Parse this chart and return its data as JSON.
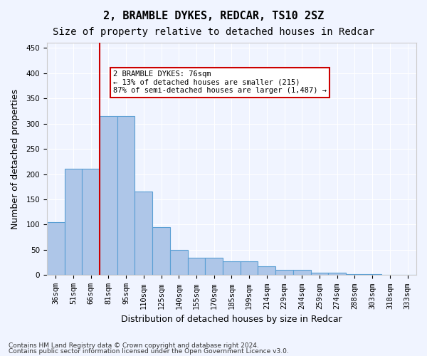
{
  "title1": "2, BRAMBLE DYKES, REDCAR, TS10 2SZ",
  "title2": "Size of property relative to detached houses in Redcar",
  "xlabel": "Distribution of detached houses by size in Redcar",
  "ylabel": "Number of detached properties",
  "categories": [
    "36sqm",
    "51sqm",
    "66sqm",
    "81sqm",
    "95sqm",
    "110sqm",
    "125sqm",
    "140sqm",
    "155sqm",
    "170sqm",
    "185sqm",
    "199sqm",
    "214sqm",
    "229sqm",
    "244sqm",
    "259sqm",
    "274sqm",
    "288sqm",
    "303sqm",
    "318sqm",
    "333sqm"
  ],
  "values": [
    105,
    210,
    210,
    315,
    315,
    165,
    95,
    50,
    35,
    35,
    27,
    27,
    18,
    10,
    10,
    5,
    5,
    2,
    2,
    1,
    1
  ],
  "bar_color": "#aec6e8",
  "bar_edge_color": "#5a9fd4",
  "vline_x": 2.0,
  "vline_color": "#cc0000",
  "annotation_text": "2 BRAMBLE DYKES: 76sqm\n← 13% of detached houses are smaller (215)\n87% of semi-detached houses are larger (1,487) →",
  "annotation_box_color": "#ffffff",
  "annotation_box_edge": "#cc0000",
  "ylim": [
    0,
    460
  ],
  "yticks": [
    0,
    50,
    100,
    150,
    200,
    250,
    300,
    350,
    400,
    450
  ],
  "footer1": "Contains HM Land Registry data © Crown copyright and database right 2024.",
  "footer2": "Contains public sector information licensed under the Open Government Licence v3.0.",
  "bg_color": "#f0f4ff",
  "plot_bg_color": "#f0f4ff",
  "grid_color": "#ffffff",
  "title1_fontsize": 11,
  "title2_fontsize": 10,
  "tick_fontsize": 7.5,
  "label_fontsize": 9
}
